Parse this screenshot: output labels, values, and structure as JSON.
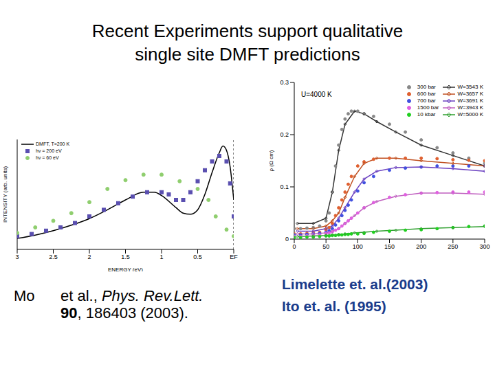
{
  "title": "Recent Experiments support qualitative single site DMFT predictions",
  "chart_data": [
    {
      "type": "line",
      "x_label": "ENERGY (eV)",
      "y_label": "INTENSITY (arb. units)",
      "xlim": [
        3,
        0
      ],
      "xticks": [
        3,
        2.5,
        2,
        1.5,
        1,
        0.5,
        {
          "value": 0,
          "label": "EF"
        }
      ],
      "ylim": [
        0,
        1
      ],
      "tick_labels": "x",
      "legend": "upper left",
      "series": [
        {
          "name": "DMFT, T=200 K",
          "type": "line",
          "color": "#000000",
          "line_style": "solid",
          "x": [
            3,
            2.75,
            2.5,
            2.25,
            2,
            1.75,
            1.5,
            1.25,
            1.1,
            1,
            0.8,
            0.7,
            0.6,
            0.5,
            0.4,
            0.3,
            0.2,
            0.15,
            0.1,
            0.05,
            0
          ],
          "values": [
            0.1,
            0.13,
            0.17,
            0.22,
            0.28,
            0.36,
            0.45,
            0.52,
            0.52,
            0.49,
            0.38,
            0.33,
            0.32,
            0.36,
            0.5,
            0.7,
            0.88,
            0.94,
            0.9,
            0.75,
            0.45
          ]
        },
        {
          "name": "hν = 200 eV",
          "type": "scatter",
          "marker": "square",
          "color": "#5a4fb0",
          "x": [
            3,
            2.8,
            2.6,
            2.4,
            2.2,
            2,
            1.8,
            1.6,
            1.4,
            1.2,
            1,
            0.9,
            0.8,
            0.7,
            0.6,
            0.5,
            0.4,
            0.3,
            0.2,
            0.1,
            0.05,
            0
          ],
          "values": [
            0.12,
            0.14,
            0.17,
            0.2,
            0.24,
            0.3,
            0.36,
            0.42,
            0.48,
            0.52,
            0.52,
            0.5,
            0.45,
            0.45,
            0.52,
            0.62,
            0.72,
            0.8,
            0.85,
            0.8,
            0.6,
            0.3
          ]
        },
        {
          "name": "hν = 60 eV",
          "type": "scatter",
          "marker": "circle",
          "color": "#8fce6e",
          "x": [
            3,
            2.75,
            2.5,
            2.25,
            2,
            1.75,
            1.5,
            1.25,
            1,
            0.75,
            0.5,
            0.35,
            0.25,
            0.1,
            0
          ],
          "values": [
            0.15,
            0.2,
            0.26,
            0.33,
            0.43,
            0.55,
            0.63,
            0.68,
            0.68,
            0.62,
            0.55,
            0.45,
            0.3,
            0.18,
            0.12
          ]
        }
      ]
    },
    {
      "type": "line",
      "y_label": "ρ (Ω cm)",
      "annotation": "U=4000 K",
      "xlim": [
        0,
        300
      ],
      "xticks": [
        0,
        50,
        100,
        150,
        200,
        250,
        300
      ],
      "ylim": [
        0,
        0.3
      ],
      "yticks": [
        0,
        0.1,
        0.2,
        0.3
      ],
      "legend": "upper right",
      "series": [
        {
          "name": "300 bar",
          "type": "scatter",
          "marker": "circle",
          "color": "#888888",
          "x": [
            0,
            10,
            20,
            30,
            40,
            50,
            55,
            60,
            65,
            70,
            75,
            80,
            85,
            90,
            100,
            110,
            125,
            150,
            175,
            200,
            225,
            250,
            275,
            300
          ],
          "values": [
            0.02,
            0.02,
            0.021,
            0.022,
            0.025,
            0.035,
            0.05,
            0.09,
            0.14,
            0.18,
            0.21,
            0.23,
            0.24,
            0.245,
            0.245,
            0.24,
            0.235,
            0.22,
            0.205,
            0.19,
            0.175,
            0.165,
            0.155,
            0.145
          ]
        },
        {
          "name": "600 bar",
          "type": "scatter",
          "marker": "circle",
          "color": "#e06030",
          "x": [
            0,
            10,
            20,
            30,
            40,
            50,
            55,
            60,
            65,
            70,
            75,
            80,
            85,
            90,
            100,
            110,
            125,
            150,
            175,
            200,
            225,
            250,
            275,
            300
          ],
          "values": [
            0.01,
            0.01,
            0.011,
            0.012,
            0.013,
            0.018,
            0.022,
            0.03,
            0.045,
            0.06,
            0.075,
            0.09,
            0.105,
            0.12,
            0.14,
            0.148,
            0.153,
            0.155,
            0.155,
            0.155,
            0.154,
            0.152,
            0.151,
            0.15
          ]
        },
        {
          "name": "700 bar",
          "type": "scatter",
          "marker": "circle",
          "color": "#4050e0",
          "x": [
            0,
            10,
            20,
            30,
            40,
            50,
            55,
            60,
            65,
            70,
            75,
            80,
            85,
            90,
            100,
            110,
            125,
            150,
            175,
            200,
            225,
            250,
            275,
            300
          ],
          "values": [
            0.008,
            0.008,
            0.009,
            0.01,
            0.011,
            0.013,
            0.016,
            0.02,
            0.027,
            0.035,
            0.045,
            0.055,
            0.065,
            0.075,
            0.092,
            0.108,
            0.12,
            0.132,
            0.136,
            0.138,
            0.14,
            0.14,
            0.14,
            0.14
          ]
        },
        {
          "name": "1500 bar",
          "type": "scatter",
          "marker": "circle",
          "color": "#e060e0",
          "x": [
            0,
            10,
            20,
            30,
            40,
            50,
            55,
            60,
            65,
            70,
            75,
            80,
            85,
            90,
            100,
            110,
            125,
            150,
            175,
            200,
            225,
            250,
            275,
            300
          ],
          "values": [
            0.005,
            0.005,
            0.006,
            0.007,
            0.008,
            0.01,
            0.012,
            0.014,
            0.017,
            0.02,
            0.025,
            0.03,
            0.035,
            0.04,
            0.05,
            0.06,
            0.07,
            0.08,
            0.085,
            0.088,
            0.089,
            0.09,
            0.09,
            0.09
          ]
        },
        {
          "name": "10 kbar",
          "type": "scatter",
          "marker": "circle",
          "color": "#20d020",
          "x": [
            0,
            10,
            20,
            30,
            40,
            50,
            55,
            60,
            65,
            70,
            75,
            80,
            85,
            90,
            100,
            110,
            125,
            150,
            175,
            200,
            225,
            250,
            275,
            300
          ],
          "values": [
            0.003,
            0.003,
            0.004,
            0.004,
            0.005,
            0.006,
            0.006,
            0.007,
            0.007,
            0.008,
            0.008,
            0.009,
            0.009,
            0.01,
            0.01,
            0.011,
            0.013,
            0.015,
            0.017,
            0.018,
            0.02,
            0.022,
            0.024,
            0.025
          ]
        },
        {
          "name": "W=3543 K",
          "type": "line",
          "marker": "diamond",
          "line_style": "solid",
          "color": "#333333",
          "x": [
            5,
            30,
            50,
            60,
            70,
            80,
            95,
            110,
            130,
            160,
            200,
            250,
            300
          ],
          "values": [
            0.03,
            0.03,
            0.04,
            0.09,
            0.17,
            0.22,
            0.245,
            0.24,
            0.225,
            0.205,
            0.18,
            0.16,
            0.14
          ]
        },
        {
          "name": "W=3657 K",
          "type": "line",
          "marker": "diamond",
          "line_style": "solid",
          "color": "#c05020",
          "x": [
            5,
            30,
            50,
            60,
            70,
            80,
            95,
            110,
            130,
            160,
            200,
            250,
            300
          ],
          "values": [
            0.02,
            0.02,
            0.025,
            0.035,
            0.05,
            0.08,
            0.12,
            0.145,
            0.155,
            0.155,
            0.15,
            0.145,
            0.14
          ]
        },
        {
          "name": "W=3691 K",
          "type": "line",
          "marker": "diamond",
          "line_style": "solid",
          "color": "#6a40c0",
          "x": [
            5,
            30,
            50,
            60,
            70,
            80,
            95,
            110,
            130,
            160,
            200,
            250,
            300
          ],
          "values": [
            0.015,
            0.015,
            0.02,
            0.025,
            0.04,
            0.06,
            0.09,
            0.115,
            0.13,
            0.137,
            0.138,
            0.135,
            0.13
          ]
        },
        {
          "name": "W=3943 K",
          "type": "line",
          "marker": "diamond",
          "line_style": "solid",
          "color": "#c060c0",
          "x": [
            5,
            30,
            50,
            60,
            70,
            80,
            95,
            110,
            130,
            160,
            200,
            250,
            300
          ],
          "values": [
            0.01,
            0.01,
            0.012,
            0.015,
            0.02,
            0.03,
            0.045,
            0.06,
            0.072,
            0.082,
            0.088,
            0.088,
            0.086
          ]
        },
        {
          "name": "W=5000 K",
          "type": "line",
          "marker": "diamond",
          "line_style": "solid",
          "color": "#30a030",
          "x": [
            5,
            30,
            50,
            60,
            70,
            80,
            95,
            110,
            130,
            160,
            200,
            250,
            300
          ],
          "values": [
            0.005,
            0.006,
            0.007,
            0.008,
            0.009,
            0.01,
            0.012,
            0.013,
            0.015,
            0.017,
            0.02,
            0.022,
            0.024
          ]
        }
      ]
    }
  ],
  "captions": {
    "left": {
      "author": "Mo",
      "text": "et al.,",
      "journal": "Phys. Rev.Lett.",
      "volume": "90",
      "pages": "186403 (2003)."
    },
    "right": [
      "Limelette et. al.(2003)",
      "Ito et. al. (1995)"
    ]
  }
}
